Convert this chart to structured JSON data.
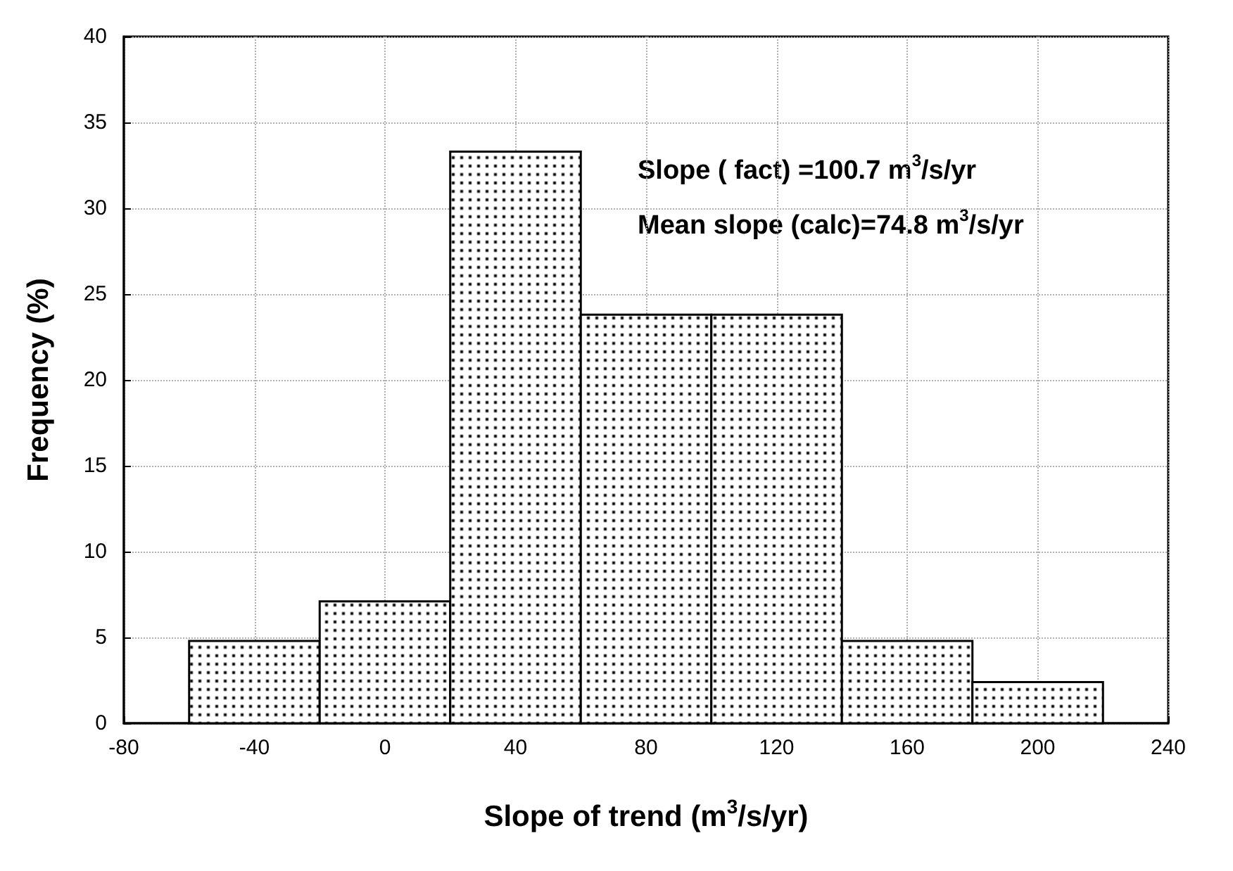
{
  "chart_data": {
    "type": "histogram",
    "xlabel": "Slope of trend (m$^{3}$/s/yr)",
    "ylabel": "Frequency (%)",
    "bins": [
      -60,
      -20,
      20,
      60,
      100,
      140,
      180,
      220
    ],
    "values": [
      4.8,
      7.1,
      33.3,
      23.8,
      23.8,
      4.8,
      2.4
    ],
    "color": "#000000",
    "xlim": [
      -80,
      240
    ],
    "xticks": [
      -80,
      -40,
      0,
      40,
      80,
      120,
      160,
      200,
      240
    ],
    "ylim": [
      0,
      40
    ],
    "yticks": [
      0,
      5,
      10,
      15,
      20,
      25,
      30,
      35,
      40
    ],
    "grid": true,
    "annotations": [
      "Slope ( fact) =100.7 m$^{3}$/s/yr",
      "Mean slope (calc)=74.8 m$^{3}$/s/yr"
    ]
  }
}
